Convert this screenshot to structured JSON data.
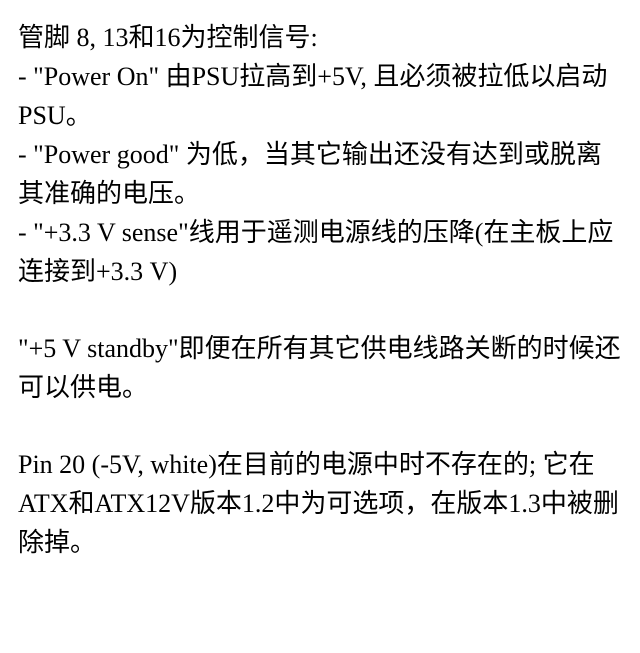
{
  "section1": {
    "heading": "管脚 8, 13和16为控制信号:",
    "bullet1": "- \"Power On\" 由PSU拉高到+5V, 且必须被拉低以启动PSU。",
    "bullet2": "- \"Power good\" 为低，当其它输出还没有达到或脱离其准确的电压。",
    "bullet3": "- \"+3.3 V sense\"线用于遥测电源线的压降(在主板上应连接到+3.3 V)"
  },
  "section2": {
    "text": "\"+5 V standby\"即便在所有其它供电线路关断的时候还可以供电。"
  },
  "section3": {
    "text": "Pin 20 (-5V, white)在目前的电源中时不存在的; 它在ATX和ATX12V版本1.2中为可选项，在版本1.3中被删除掉。"
  },
  "styling": {
    "background_color": "#ffffff",
    "text_color": "#000000",
    "font_size": 26,
    "line_height": 1.5,
    "font_family": "Times New Roman, SimSun, serif"
  }
}
